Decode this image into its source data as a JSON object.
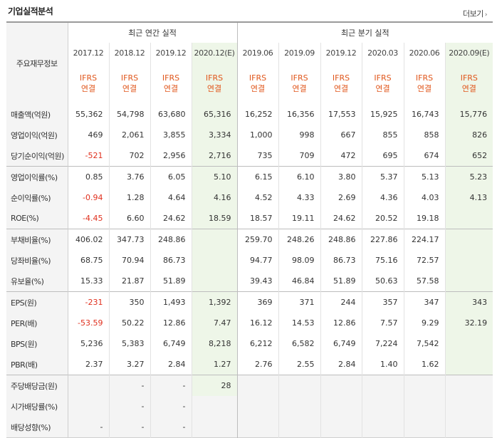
{
  "header": {
    "title": "기업실적분석",
    "more_label": "더보기"
  },
  "table": {
    "corner_label": "주요재무정보",
    "groups": {
      "annual": "최근 연간 실적",
      "quarter": "최근 분기 실적"
    },
    "periods": [
      "2017.12",
      "2018.12",
      "2019.12",
      "2020.12(E)",
      "2019.06",
      "2019.09",
      "2019.12",
      "2020.03",
      "2020.06",
      "2020.09(E)"
    ],
    "standard_top": "IFRS",
    "standard_bottom": "연결",
    "rows": [
      {
        "label": "매출액(억원)",
        "values": [
          "55,362",
          "54,798",
          "63,680",
          "65,316",
          "16,252",
          "16,356",
          "17,553",
          "15,925",
          "16,743",
          "15,776"
        ]
      },
      {
        "label": "영업이익(억원)",
        "values": [
          "469",
          "2,061",
          "3,855",
          "3,334",
          "1,000",
          "998",
          "667",
          "855",
          "858",
          "826"
        ]
      },
      {
        "label": "당기순이익(억원)",
        "values": [
          "-521",
          "702",
          "2,956",
          "2,716",
          "735",
          "709",
          "472",
          "695",
          "674",
          "652"
        ]
      },
      {
        "label": "영업이익률(%)",
        "values": [
          "0.85",
          "3.76",
          "6.05",
          "5.10",
          "6.15",
          "6.10",
          "3.80",
          "5.37",
          "5.13",
          "5.23"
        ]
      },
      {
        "label": "순이익률(%)",
        "values": [
          "-0.94",
          "1.28",
          "4.64",
          "4.16",
          "4.52",
          "4.33",
          "2.69",
          "4.36",
          "4.03",
          "4.13"
        ]
      },
      {
        "label": "ROE(%)",
        "values": [
          "-4.45",
          "6.60",
          "24.62",
          "18.59",
          "18.57",
          "19.11",
          "24.62",
          "20.52",
          "19.18",
          ""
        ]
      },
      {
        "label": "부채비율(%)",
        "values": [
          "406.02",
          "347.73",
          "248.86",
          "",
          "259.70",
          "248.26",
          "248.86",
          "227.86",
          "224.17",
          ""
        ]
      },
      {
        "label": "당좌비율(%)",
        "values": [
          "68.75",
          "70.94",
          "86.73",
          "",
          "94.77",
          "98.09",
          "86.73",
          "75.16",
          "72.57",
          ""
        ]
      },
      {
        "label": "유보율(%)",
        "values": [
          "15.33",
          "21.87",
          "51.89",
          "",
          "39.43",
          "46.84",
          "51.89",
          "50.63",
          "57.58",
          ""
        ]
      },
      {
        "label": "EPS(원)",
        "values": [
          "-231",
          "350",
          "1,493",
          "1,392",
          "369",
          "371",
          "244",
          "357",
          "347",
          "343"
        ]
      },
      {
        "label": "PER(배)",
        "values": [
          "-53.59",
          "50.22",
          "12.86",
          "7.47",
          "16.12",
          "14.53",
          "12.86",
          "7.57",
          "9.29",
          "32.19"
        ]
      },
      {
        "label": "BPS(원)",
        "values": [
          "5,236",
          "5,383",
          "6,749",
          "8,218",
          "6,212",
          "6,582",
          "6,749",
          "7,224",
          "7,542",
          ""
        ]
      },
      {
        "label": "PBR(배)",
        "values": [
          "2.37",
          "3.27",
          "2.84",
          "1.27",
          "2.76",
          "2.55",
          "2.84",
          "1.40",
          "1.62",
          ""
        ]
      },
      {
        "label": "주당배당금(원)",
        "values": [
          "",
          "-",
          "-",
          "28",
          "",
          "",
          "",
          "",
          "",
          ""
        ]
      },
      {
        "label": "시가배당률(%)",
        "values": [
          "",
          "-",
          "-",
          "",
          "",
          "",
          "",
          "",
          "",
          ""
        ]
      },
      {
        "label": "배당성향(%)",
        "values": [
          "-",
          "-",
          "-",
          "",
          "",
          "",
          "",
          "",
          "",
          ""
        ]
      }
    ]
  },
  "colors": {
    "ifrs": "#e0561b",
    "negative": "#e0301e",
    "estimate_bg": "#eef6e8",
    "label_bg": "#f4f4f4"
  }
}
